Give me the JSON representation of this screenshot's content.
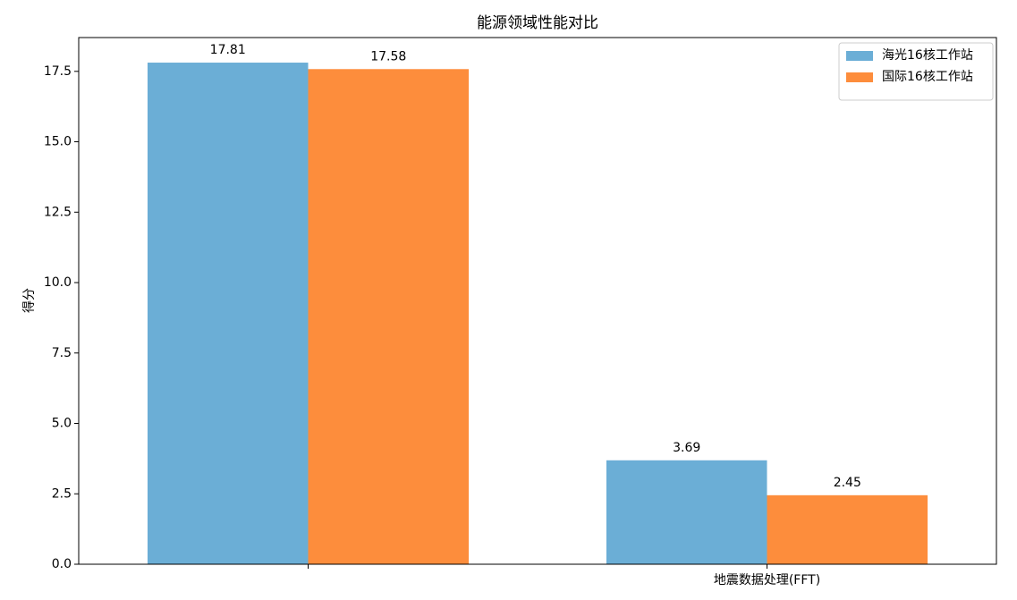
{
  "chart_data": {
    "type": "bar",
    "title": "能源领域性能对比",
    "y_label": "得分",
    "categories": [
      null,
      "地震数据处理(FFT)"
    ],
    "series": [
      {
        "name": "海光16核工作站",
        "color": "#6baed6",
        "values": [
          17.81,
          3.69
        ]
      },
      {
        "name": "国际16核工作站",
        "color": "#fd8d3c",
        "values": [
          17.58,
          2.45
        ]
      }
    ],
    "ylim": [
      0,
      18.7
    ],
    "yticks": [
      {
        "value": 0,
        "label": "0.0"
      },
      2.5,
      {
        "value": 5,
        "label": "5.0"
      },
      7.5,
      {
        "value": 10,
        "label": "10.0"
      },
      12.5,
      {
        "value": 15,
        "label": "15.0"
      },
      17.5
    ],
    "legend": "upper right"
  }
}
